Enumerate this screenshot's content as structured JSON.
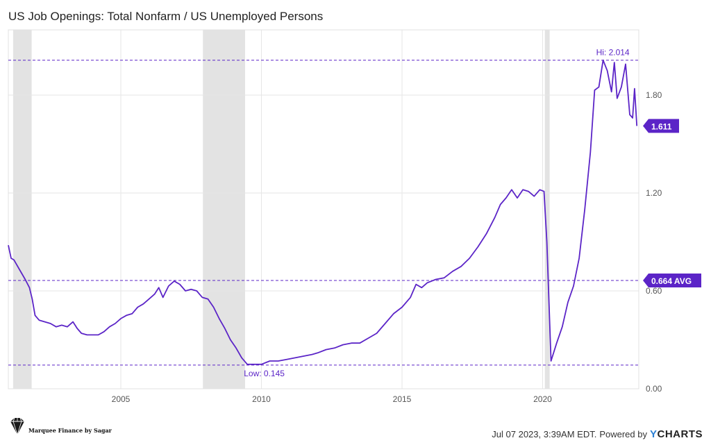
{
  "chart_data": {
    "type": "line",
    "title": "US Job Openings: Total Nonfarm / US Unemployed Persons",
    "xlabel": "",
    "ylabel": "",
    "x_range": [
      2001.0,
      2023.42
    ],
    "ylim": [
      0.0,
      2.2
    ],
    "x_ticks": [
      {
        "value": 2005,
        "label": "2005"
      },
      {
        "value": 2010,
        "label": "2010"
      },
      {
        "value": 2015,
        "label": "2015"
      },
      {
        "value": 2020,
        "label": "2020"
      }
    ],
    "y_ticks": [
      {
        "value": 0.0,
        "label": "0.00"
      },
      {
        "value": 0.6,
        "label": "0.60"
      },
      {
        "value": 1.2,
        "label": "1.20"
      },
      {
        "value": 1.8,
        "label": "1.80"
      }
    ],
    "grid": true,
    "recession_shading": [
      {
        "start": 2001.17,
        "end": 2001.83
      },
      {
        "start": 2007.92,
        "end": 2009.42
      },
      {
        "start": 2020.08,
        "end": 2020.25
      }
    ],
    "series": [
      {
        "name": "US Job Openings: Total Nonfarm / US Unemployed Persons",
        "color": "#5b24c7",
        "points": [
          [
            2001.0,
            0.88
          ],
          [
            2001.1,
            0.8
          ],
          [
            2001.2,
            0.79
          ],
          [
            2001.4,
            0.73
          ],
          [
            2001.6,
            0.67
          ],
          [
            2001.75,
            0.62
          ],
          [
            2001.85,
            0.55
          ],
          [
            2001.95,
            0.45
          ],
          [
            2002.1,
            0.42
          ],
          [
            2002.3,
            0.41
          ],
          [
            2002.5,
            0.4
          ],
          [
            2002.7,
            0.38
          ],
          [
            2002.9,
            0.39
          ],
          [
            2003.1,
            0.38
          ],
          [
            2003.3,
            0.41
          ],
          [
            2003.45,
            0.37
          ],
          [
            2003.6,
            0.34
          ],
          [
            2003.8,
            0.33
          ],
          [
            2004.0,
            0.33
          ],
          [
            2004.2,
            0.33
          ],
          [
            2004.4,
            0.35
          ],
          [
            2004.6,
            0.38
          ],
          [
            2004.8,
            0.4
          ],
          [
            2005.0,
            0.43
          ],
          [
            2005.2,
            0.45
          ],
          [
            2005.4,
            0.46
          ],
          [
            2005.6,
            0.5
          ],
          [
            2005.8,
            0.52
          ],
          [
            2006.0,
            0.55
          ],
          [
            2006.2,
            0.58
          ],
          [
            2006.35,
            0.62
          ],
          [
            2006.5,
            0.56
          ],
          [
            2006.7,
            0.63
          ],
          [
            2006.9,
            0.66
          ],
          [
            2007.1,
            0.64
          ],
          [
            2007.3,
            0.6
          ],
          [
            2007.5,
            0.61
          ],
          [
            2007.7,
            0.6
          ],
          [
            2007.9,
            0.56
          ],
          [
            2008.1,
            0.55
          ],
          [
            2008.3,
            0.5
          ],
          [
            2008.5,
            0.43
          ],
          [
            2008.7,
            0.37
          ],
          [
            2008.9,
            0.3
          ],
          [
            2009.1,
            0.25
          ],
          [
            2009.3,
            0.19
          ],
          [
            2009.5,
            0.15
          ],
          [
            2009.8,
            0.15
          ],
          [
            2010.0,
            0.15
          ],
          [
            2010.3,
            0.17
          ],
          [
            2010.6,
            0.17
          ],
          [
            2010.9,
            0.18
          ],
          [
            2011.2,
            0.19
          ],
          [
            2011.5,
            0.2
          ],
          [
            2011.8,
            0.21
          ],
          [
            2012.0,
            0.22
          ],
          [
            2012.3,
            0.24
          ],
          [
            2012.6,
            0.25
          ],
          [
            2012.9,
            0.27
          ],
          [
            2013.2,
            0.28
          ],
          [
            2013.5,
            0.28
          ],
          [
            2013.8,
            0.31
          ],
          [
            2014.1,
            0.34
          ],
          [
            2014.4,
            0.4
          ],
          [
            2014.7,
            0.46
          ],
          [
            2015.0,
            0.5
          ],
          [
            2015.3,
            0.56
          ],
          [
            2015.5,
            0.64
          ],
          [
            2015.7,
            0.62
          ],
          [
            2015.9,
            0.65
          ],
          [
            2016.2,
            0.67
          ],
          [
            2016.5,
            0.68
          ],
          [
            2016.8,
            0.72
          ],
          [
            2017.1,
            0.75
          ],
          [
            2017.4,
            0.8
          ],
          [
            2017.7,
            0.87
          ],
          [
            2018.0,
            0.95
          ],
          [
            2018.3,
            1.05
          ],
          [
            2018.5,
            1.13
          ],
          [
            2018.7,
            1.17
          ],
          [
            2018.9,
            1.22
          ],
          [
            2019.1,
            1.17
          ],
          [
            2019.3,
            1.22
          ],
          [
            2019.5,
            1.21
          ],
          [
            2019.7,
            1.18
          ],
          [
            2019.9,
            1.22
          ],
          [
            2020.05,
            1.21
          ],
          [
            2020.15,
            0.9
          ],
          [
            2020.3,
            0.17
          ],
          [
            2020.5,
            0.28
          ],
          [
            2020.7,
            0.38
          ],
          [
            2020.9,
            0.53
          ],
          [
            2021.1,
            0.63
          ],
          [
            2021.3,
            0.8
          ],
          [
            2021.5,
            1.1
          ],
          [
            2021.7,
            1.45
          ],
          [
            2021.85,
            1.83
          ],
          [
            2022.0,
            1.85
          ],
          [
            2022.15,
            2.014
          ],
          [
            2022.3,
            1.95
          ],
          [
            2022.45,
            1.82
          ],
          [
            2022.55,
            2.0
          ],
          [
            2022.65,
            1.78
          ],
          [
            2022.8,
            1.85
          ],
          [
            2022.95,
            1.99
          ],
          [
            2023.1,
            1.68
          ],
          [
            2023.2,
            1.66
          ],
          [
            2023.27,
            1.84
          ],
          [
            2023.35,
            1.611
          ]
        ]
      }
    ],
    "reference_lines": [
      {
        "value": 2.014,
        "label": "Hi: 2.014"
      },
      {
        "value": 0.664,
        "label": "0.664 AVG"
      },
      {
        "value": 0.145,
        "label": "Low: 0.145"
      }
    ],
    "last_value": {
      "value": 1.611,
      "label": "1.611"
    },
    "accent_color": "#5b24c7",
    "recession_color": "#e3e3e3"
  },
  "footer": {
    "timestamp": "Jul 07 2023, 3:39AM EDT.",
    "powered_by": "Powered by",
    "ycharts_y": "Y",
    "ycharts_rest": "CHARTS",
    "brand_text": "Marquee Finance by Sagar"
  },
  "icons": {
    "brand": "diamond-icon"
  }
}
